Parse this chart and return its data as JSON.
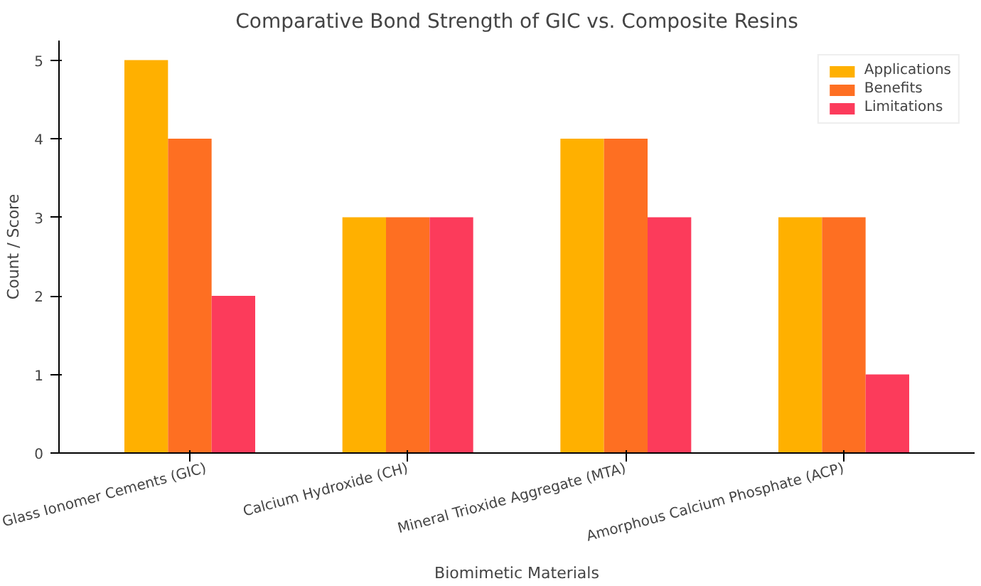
{
  "chart_data": {
    "type": "bar",
    "title": "Comparative Bond Strength of GIC vs. Composite Resins",
    "xlabel": "Biomimetic Materials",
    "ylabel": "Count / Score",
    "categories": [
      "Glass Ionomer Cements (GIC)",
      "Calcium Hydroxide (CH)",
      "Mineral Trioxide Aggregate (MTA)",
      "Amorphous Calcium Phosphate (ACP)"
    ],
    "series": [
      {
        "name": "Applications",
        "color": "#ffb000",
        "values": [
          5,
          3,
          4,
          3
        ]
      },
      {
        "name": "Benefits",
        "color": "#fe6f22",
        "values": [
          4,
          3,
          4,
          3
        ]
      },
      {
        "name": "Limitations",
        "color": "#fc3b5b",
        "values": [
          2,
          3,
          3,
          1
        ]
      }
    ],
    "ylim": [
      0,
      5.25
    ],
    "yticks": [
      0,
      1,
      2,
      3,
      4,
      5
    ],
    "legend": "top right"
  }
}
